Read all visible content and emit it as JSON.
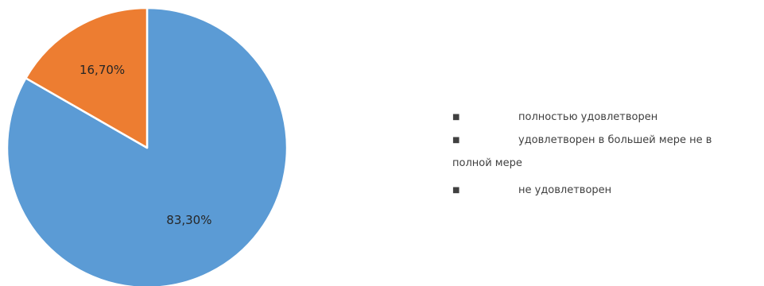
{
  "chart_data": {
    "type": "pie",
    "title": "",
    "start_angle_deg": 0,
    "direction": "clockwise",
    "slices": [
      {
        "label": "полностью удовлетворен",
        "value": 83.3,
        "display": "83,30%",
        "color": "#5B9BD5"
      },
      {
        "label": "удовлетворен в большей мере не в полной мере",
        "value": 16.7,
        "display": "16,70%",
        "color": "#ED7D31"
      },
      {
        "label": "не удовлетворен",
        "value": 0,
        "display": "",
        "color": "#A5A5A5"
      }
    ],
    "legend_placement": "right"
  },
  "legend": {
    "bullet": "■",
    "items": [
      {
        "text": "полностью удовлетворен"
      },
      {
        "text": "удовлетворен в большей мере не в",
        "cont": "полной мере"
      },
      {
        "text": "не удовлетворен"
      }
    ]
  }
}
